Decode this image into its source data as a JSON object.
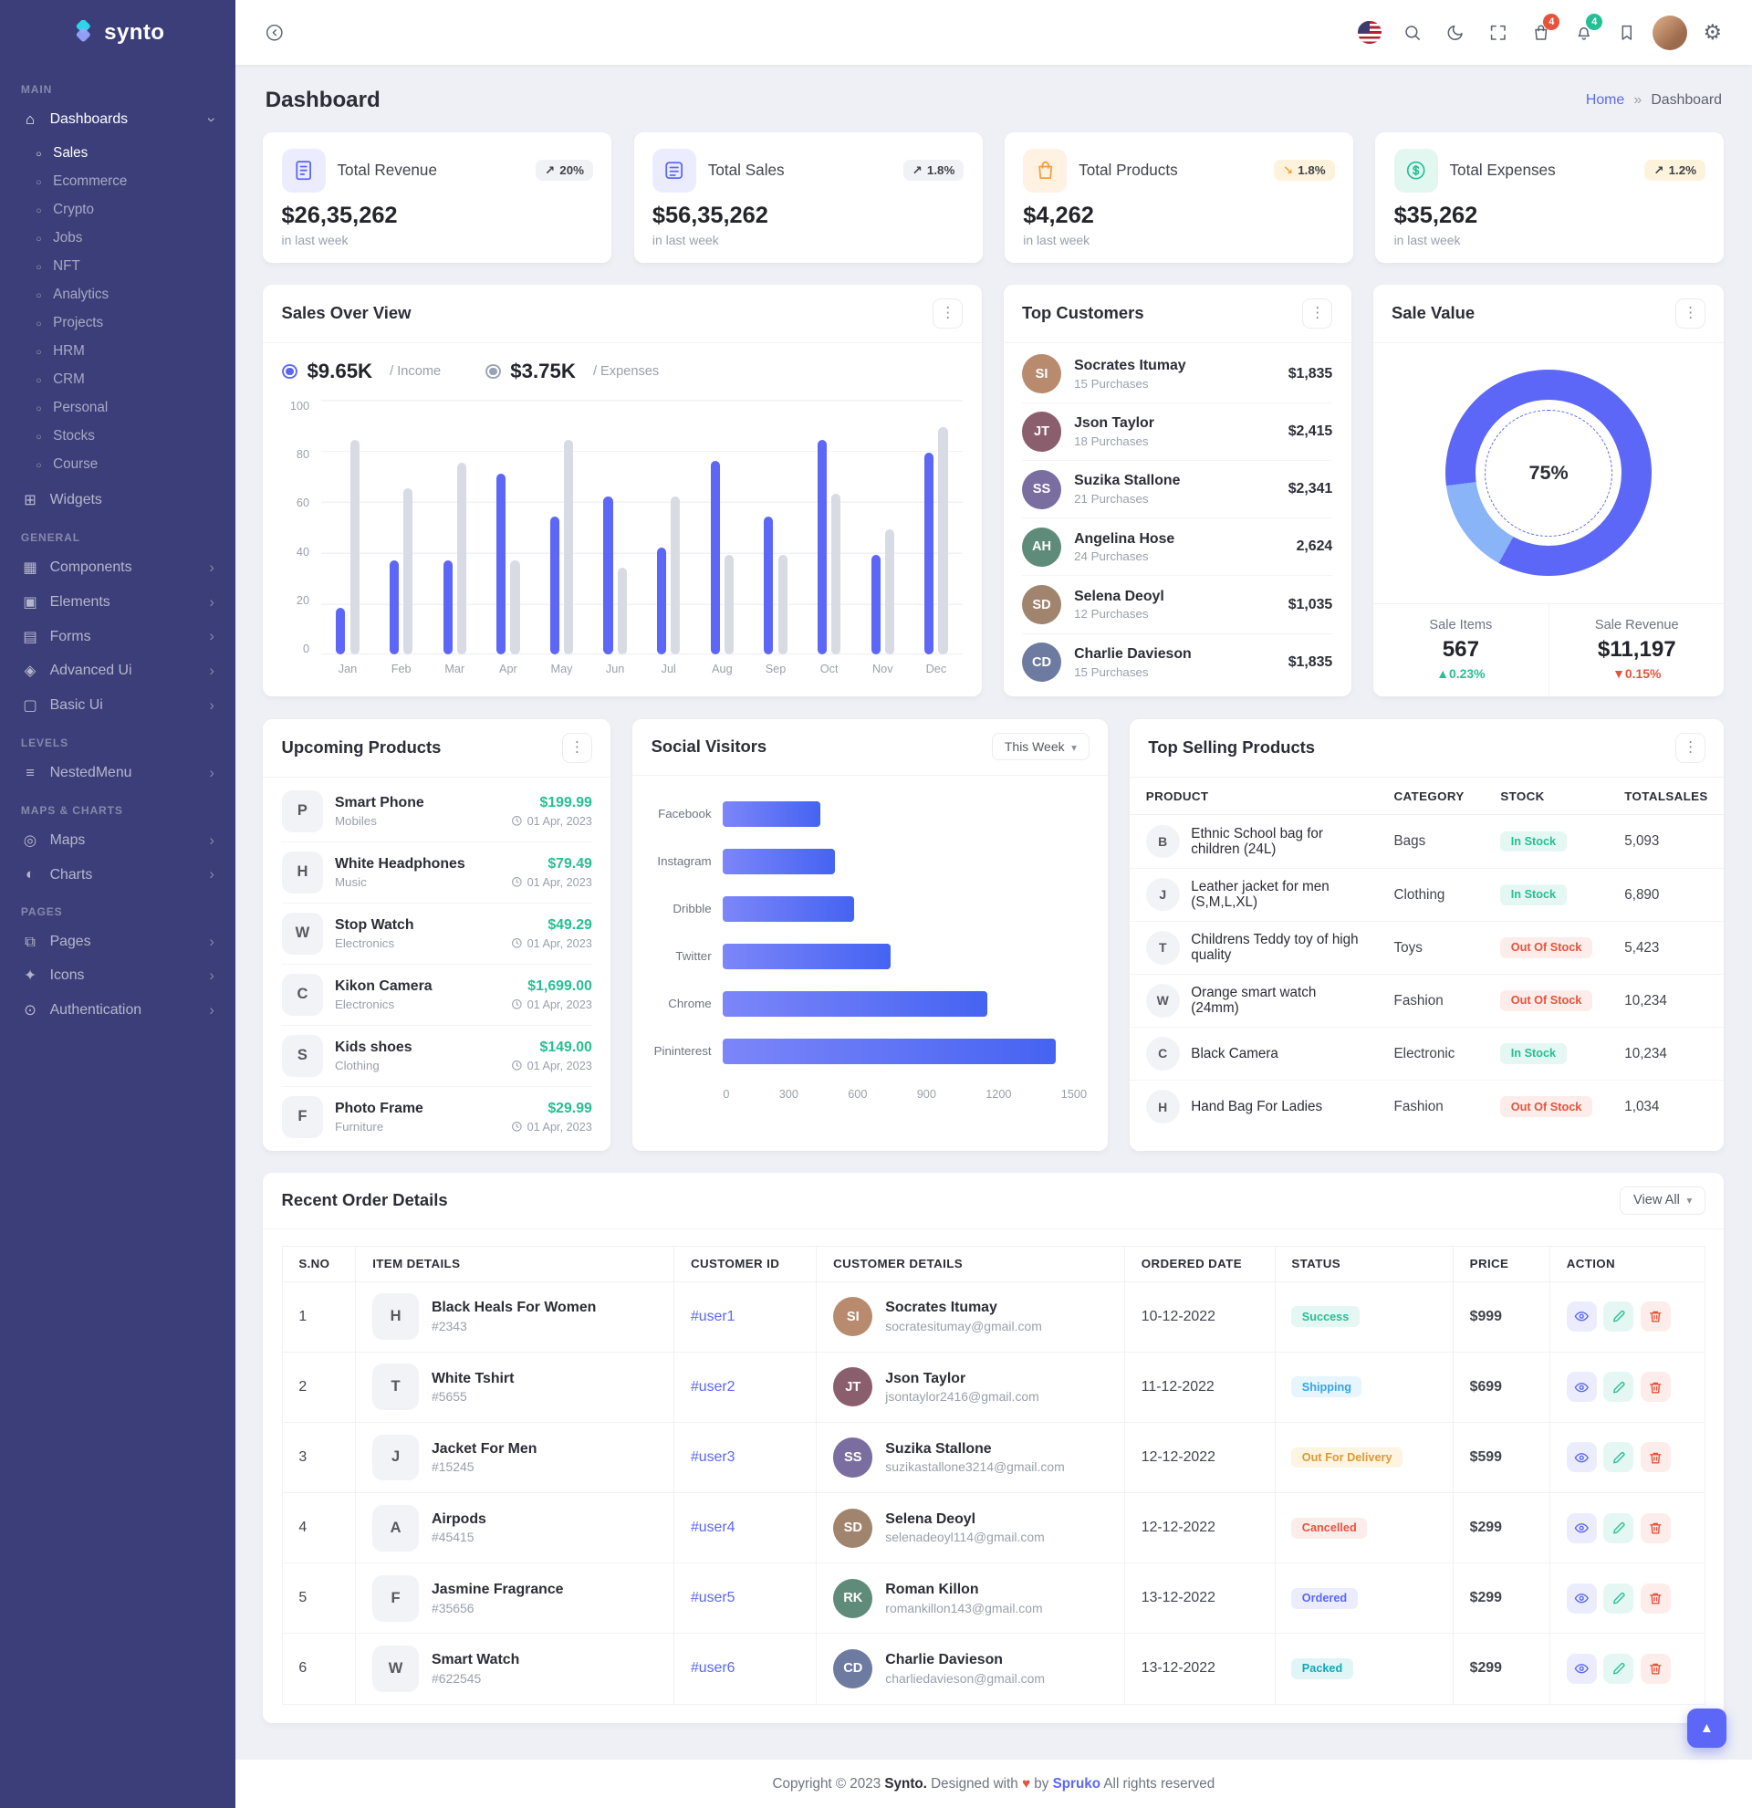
{
  "brand": {
    "name": "synto"
  },
  "topbar": {
    "cart_badge": "4",
    "bell_badge": "4"
  },
  "page": {
    "title": "Dashboard",
    "breadcrumb": {
      "home": "Home",
      "separator": "»",
      "current": "Dashboard"
    }
  },
  "sidebar": {
    "groups": [
      {
        "title": "MAIN",
        "items": [
          {
            "label": "Dashboards",
            "glyph": "⌂",
            "open": true,
            "children": [
              {
                "label": "Sales",
                "state": "active"
              },
              {
                "label": "Ecommerce"
              },
              {
                "label": "Crypto"
              },
              {
                "label": "Jobs"
              },
              {
                "label": "NFT"
              },
              {
                "label": "Analytics"
              },
              {
                "label": "Projects"
              },
              {
                "label": "HRM"
              },
              {
                "label": "CRM"
              },
              {
                "label": "Personal"
              },
              {
                "label": "Stocks"
              },
              {
                "label": "Course"
              }
            ]
          },
          {
            "label": "Widgets",
            "glyph": "⊞"
          }
        ]
      },
      {
        "title": "GENERAL",
        "items": [
          {
            "label": "Components",
            "glyph": "▦"
          },
          {
            "label": "Elements",
            "glyph": "▣"
          },
          {
            "label": "Forms",
            "glyph": "▤"
          },
          {
            "label": "Advanced Ui",
            "glyph": "◈"
          },
          {
            "label": "Basic Ui",
            "glyph": "▢"
          }
        ]
      },
      {
        "title": "LEVELS",
        "items": [
          {
            "label": "NestedMenu",
            "glyph": "≡"
          }
        ]
      },
      {
        "title": "MAPS & CHARTS",
        "items": [
          {
            "label": "Maps",
            "glyph": "◎"
          },
          {
            "label": "Charts",
            "glyph": "◐"
          }
        ]
      },
      {
        "title": "PAGES",
        "items": [
          {
            "label": "Pages",
            "glyph": "⧉"
          },
          {
            "label": "Icons",
            "glyph": "✦"
          },
          {
            "label": "Authentication",
            "glyph": "⊙"
          }
        ]
      }
    ]
  },
  "stats": [
    {
      "title": "Total Revenue",
      "value": "$26,35,262",
      "period": "in last week",
      "badge": "20%",
      "arrow": "↗"
    },
    {
      "title": "Total Sales",
      "value": "$56,35,262",
      "period": "in last week",
      "badge": "1.8%",
      "arrow": "↗"
    },
    {
      "title": "Total Products",
      "value": "$4,262",
      "period": "in last week",
      "badge": "1.8%",
      "arrow": "↘"
    },
    {
      "title": "Total Expenses",
      "value": "$35,262",
      "period": "in last week",
      "badge": "1.2%",
      "arrow": "↗"
    }
  ],
  "sales_overview": {
    "title": "Sales Over View",
    "legend": [
      {
        "value": "$9.65K",
        "label": "/ Income"
      },
      {
        "value": "$3.75K",
        "label": "/ Expenses"
      }
    ],
    "chart_data": {
      "type": "bar",
      "categories": [
        "Jan",
        "Feb",
        "Mar",
        "Apr",
        "May",
        "Jun",
        "Jul",
        "Aug",
        "Sep",
        "Oct",
        "Nov",
        "Dec"
      ],
      "series": [
        {
          "name": "Income",
          "color": "#5c67f7",
          "values": [
            18,
            37,
            37,
            71,
            54,
            62,
            42,
            76,
            54,
            84,
            39,
            79
          ]
        },
        {
          "name": "Expenses",
          "color": "#d9dbe4",
          "values": [
            84,
            65,
            75,
            37,
            84,
            34,
            62,
            39,
            39,
            63,
            49,
            89
          ]
        }
      ],
      "ylim": [
        0,
        100
      ],
      "yticks": [
        "100",
        "80",
        "60",
        "40",
        "20",
        "0"
      ]
    }
  },
  "top_customers": {
    "title": "Top Customers",
    "items": [
      {
        "name": "Socrates Itumay",
        "purchases": "15 Purchases",
        "amount": "$1,835",
        "initials": "SI",
        "color": "#b98b6e"
      },
      {
        "name": "Json Taylor",
        "purchases": "18 Purchases",
        "amount": "$2,415",
        "initials": "JT",
        "color": "#8b5e6e"
      },
      {
        "name": "Suzika Stallone",
        "purchases": "21 Purchases",
        "amount": "$2,341",
        "initials": "SS",
        "color": "#7a6ea0"
      },
      {
        "name": "Angelina Hose",
        "purchases": "24 Purchases",
        "amount": "2,624",
        "initials": "AH",
        "color": "#5e8b7a"
      },
      {
        "name": "Selena Deoyl",
        "purchases": "12 Purchases",
        "amount": "$1,035",
        "initials": "SD",
        "color": "#a0846e"
      },
      {
        "name": "Charlie Davieson",
        "purchases": "15 Purchases",
        "amount": "$1,835",
        "initials": "CD",
        "color": "#6e7ba0"
      }
    ]
  },
  "sale_value": {
    "title": "Sale Value",
    "percent": "75%",
    "chart_data": {
      "type": "pie",
      "label": "75%",
      "segments": [
        {
          "color": "#5c67f7",
          "from": 0,
          "to": 58
        },
        {
          "color": "#8ab4f8",
          "from": 58,
          "to": 73
        },
        {
          "color": "#5c67f7",
          "from": 73,
          "to": 100
        }
      ]
    },
    "metrics": [
      {
        "label": "Sale Items",
        "value": "567",
        "arrow": "▲",
        "change": "0.23%",
        "trend": "up"
      },
      {
        "label": "Sale Revenue",
        "value": "$11,197",
        "arrow": "▼",
        "change": "0.15%",
        "trend": "down"
      }
    ]
  },
  "upcoming_products": {
    "title": "Upcoming Products",
    "items": [
      {
        "name": "Smart Phone",
        "category": "Mobiles",
        "price": "$199.99",
        "date": "01 Apr, 2023",
        "thumb": "P"
      },
      {
        "name": "White Headphones",
        "category": "Music",
        "price": "$79.49",
        "date": "01 Apr, 2023",
        "thumb": "H"
      },
      {
        "name": "Stop Watch",
        "category": "Electronics",
        "price": "$49.29",
        "date": "01 Apr, 2023",
        "thumb": "W"
      },
      {
        "name": "Kikon Camera",
        "category": "Electronics",
        "price": "$1,699.00",
        "date": "01 Apr, 2023",
        "thumb": "C"
      },
      {
        "name": "Kids shoes",
        "category": "Clothing",
        "price": "$149.00",
        "date": "01 Apr, 2023",
        "thumb": "S"
      },
      {
        "name": "Photo Frame",
        "category": "Furniture",
        "price": "$29.99",
        "date": "01 Apr, 2023",
        "thumb": "F"
      }
    ]
  },
  "social_visitors": {
    "title": "Social Visitors",
    "filter_label": "This Week",
    "chart_data": {
      "type": "bar",
      "orientation": "horizontal",
      "categories": [
        "Facebook",
        "Instagram",
        "Dribble",
        "Twitter",
        "Chrome",
        "Pininterest"
      ],
      "values": [
        400,
        460,
        540,
        690,
        1090,
        1370
      ],
      "xlim": [
        0,
        1500
      ],
      "xticks": [
        "0",
        "300",
        "600",
        "900",
        "1200",
        "1500"
      ]
    }
  },
  "top_selling": {
    "title": "Top Selling Products",
    "columns": [
      "PRODUCT",
      "CATEGORY",
      "STOCK",
      "TOTALSALES"
    ],
    "rows": [
      {
        "product": "Ethnic School bag for children (24L)",
        "category": "Bags",
        "stock": "In Stock",
        "stock_style": "success",
        "sales": "5,093",
        "thumb": "B"
      },
      {
        "product": "Leather jacket for men (S,M,L,XL)",
        "category": "Clothing",
        "stock": "In Stock",
        "stock_style": "success",
        "sales": "6,890",
        "thumb": "J"
      },
      {
        "product": "Childrens Teddy toy of high quality",
        "category": "Toys",
        "stock": "Out Of Stock",
        "stock_style": "danger",
        "sales": "5,423",
        "thumb": "T"
      },
      {
        "product": "Orange smart watch (24mm)",
        "category": "Fashion",
        "stock": "Out Of Stock",
        "stock_style": "danger",
        "sales": "10,234",
        "thumb": "W"
      },
      {
        "product": "Black Camera",
        "category": "Electronic",
        "stock": "In Stock",
        "stock_style": "success",
        "sales": "10,234",
        "thumb": "C"
      },
      {
        "product": "Hand Bag For Ladies",
        "category": "Fashion",
        "stock": "Out Of Stock",
        "stock_style": "danger",
        "sales": "1,034",
        "thumb": "H"
      }
    ]
  },
  "recent_orders": {
    "title": "Recent Order Details",
    "view_all": "View All",
    "columns": [
      "S.NO",
      "ITEM DETAILS",
      "CUSTOMER ID",
      "CUSTOMER DETAILS",
      "ORDERED DATE",
      "STATUS",
      "PRICE",
      "ACTION"
    ],
    "rows": [
      {
        "sno": "1",
        "item": "Black Heals For Women",
        "item_id": "#2343",
        "thumb": "H",
        "customer_id": "#user1",
        "customer": "Socrates Itumay",
        "email": "socratesitumay@gmail.com",
        "initials": "SI",
        "color": "#b98b6e",
        "date": "10-12-2022",
        "status": "Success",
        "status_style": "success",
        "price": "$999"
      },
      {
        "sno": "2",
        "item": "White Tshirt",
        "item_id": "#5655",
        "thumb": "T",
        "customer_id": "#user2",
        "customer": "Json Taylor",
        "email": "jsontaylor2416@gmail.com",
        "initials": "JT",
        "color": "#8b5e6e",
        "date": "11-12-2022",
        "status": "Shipping",
        "status_style": "info",
        "price": "$699"
      },
      {
        "sno": "3",
        "item": "Jacket For Men",
        "item_id": "#15245",
        "thumb": "J",
        "customer_id": "#user3",
        "customer": "Suzika Stallone",
        "email": "suzikastallone3214@gmail.com",
        "initials": "SS",
        "color": "#7a6ea0",
        "date": "12-12-2022",
        "status": "Out For Delivery",
        "status_style": "warning",
        "price": "$599"
      },
      {
        "sno": "4",
        "item": "Airpods",
        "item_id": "#45415",
        "thumb": "A",
        "customer_id": "#user4",
        "customer": "Selena Deoyl",
        "email": "selenadeoyl114@gmail.com",
        "initials": "SD",
        "color": "#a0846e",
        "date": "12-12-2022",
        "status": "Cancelled",
        "status_style": "danger",
        "price": "$299"
      },
      {
        "sno": "5",
        "item": "Jasmine Fragrance",
        "item_id": "#35656",
        "thumb": "F",
        "customer_id": "#user5",
        "customer": "Roman Killon",
        "email": "romankillon143@gmail.com",
        "initials": "RK",
        "color": "#5e8b7a",
        "date": "13-12-2022",
        "status": "Ordered",
        "status_style": "primary",
        "price": "$299"
      },
      {
        "sno": "6",
        "item": "Smart Watch",
        "item_id": "#622545",
        "thumb": "W",
        "customer_id": "#user6",
        "customer": "Charlie Davieson",
        "email": "charliedavieson@gmail.com",
        "initials": "CD",
        "color": "#6e7ba0",
        "date": "13-12-2022",
        "status": "Packed",
        "status_style": "teal",
        "price": "$299"
      }
    ]
  },
  "footer": {
    "text_1": "Copyright © 2023",
    "brand": "Synto.",
    "text_2": "Designed with",
    "heart": "♥",
    "text_3": "by",
    "designer": "Spruko",
    "text_4": "All rights reserved"
  }
}
